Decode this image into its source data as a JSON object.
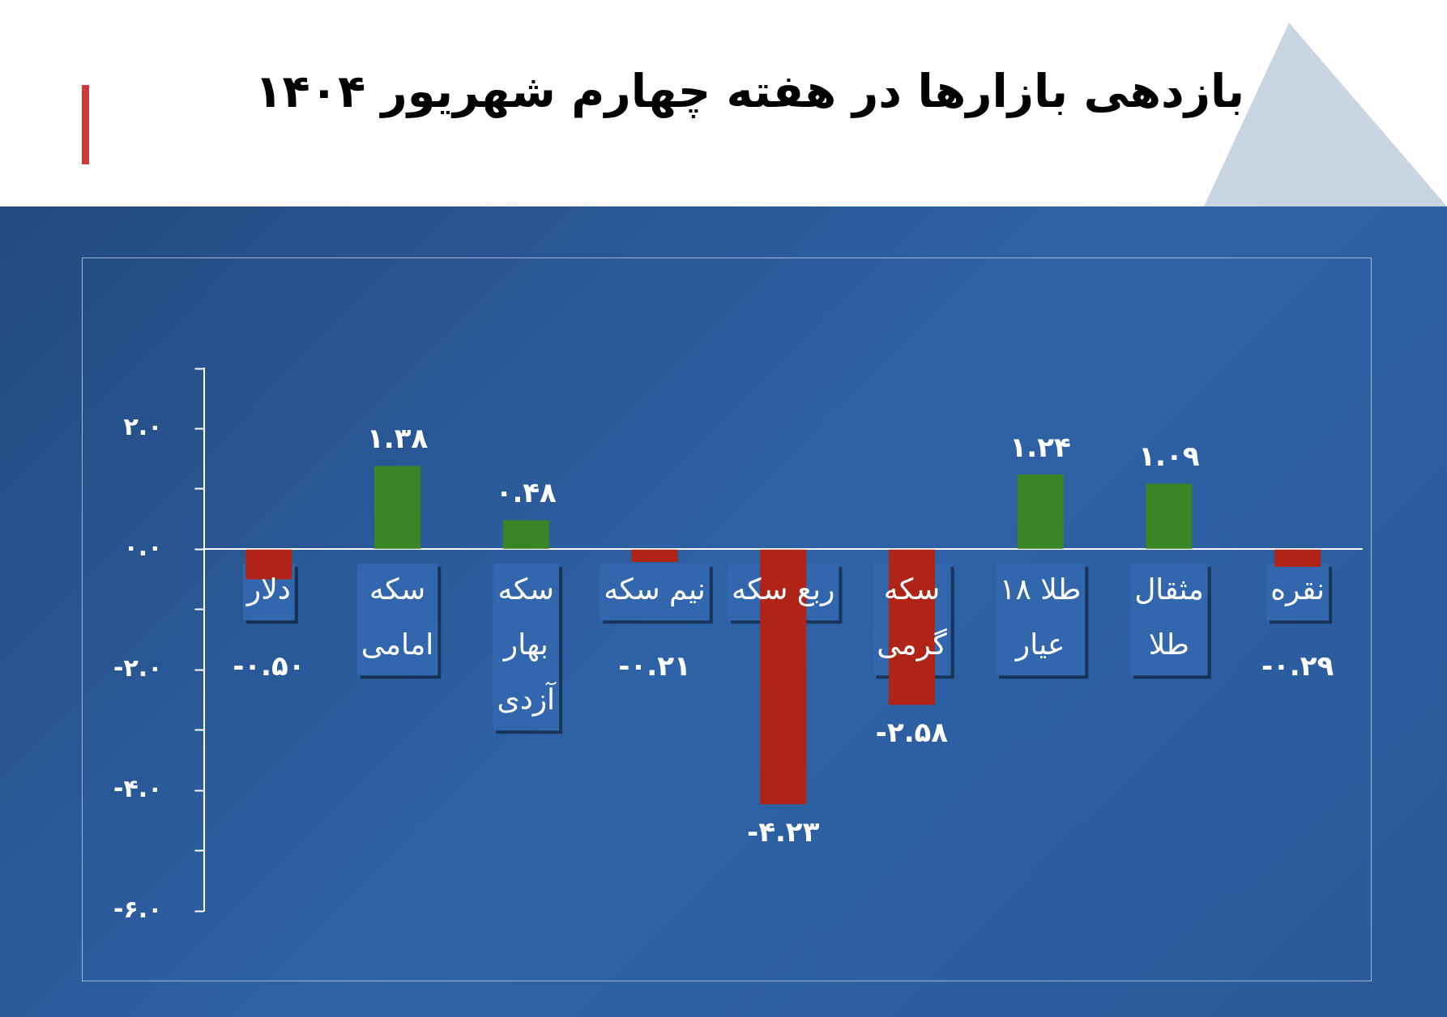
{
  "chart_data": {
    "type": "bar",
    "title": "بازدهی بازارها در هفته چهارم شهریور ۱۴۰۴",
    "categories": [
      "دلار",
      "سکه امامی",
      "سکه بهار آزدی",
      "نیم سکه",
      "ربع سکه",
      "سکه گرمی",
      "طلا ۱۸ عیار",
      "مثقال طلا",
      "نقره"
    ],
    "values": [
      -0.5,
      1.38,
      0.48,
      -0.21,
      -4.23,
      -2.58,
      1.24,
      1.09,
      -0.29
    ],
    "colors": [
      "#b02418",
      "#3a8526",
      "#3a8526",
      "#b02418",
      "#b02418",
      "#b02418",
      "#3a8526",
      "#3a8526",
      "#b02418"
    ],
    "value_labels": [
      "-۰.۵۰",
      "۱.۳۸",
      "۰.۴۸",
      "-۰.۲۱",
      "-۴.۲۳",
      "-۲.۵۸",
      "۱.۲۴",
      "۱.۰۹",
      "-۰.۲۹"
    ],
    "ylim": [
      -6,
      3
    ],
    "yticks": [
      {
        "value": 3,
        "label": null
      },
      {
        "value": 2,
        "label": "۲.۰"
      },
      {
        "value": 1,
        "label": null
      },
      {
        "value": 0,
        "label": "۰.۰"
      },
      {
        "value": -1,
        "label": null
      },
      {
        "value": -2,
        "label": "-۲.۰"
      },
      {
        "value": -3,
        "label": null
      },
      {
        "value": -4,
        "label": "-۴.۰"
      },
      {
        "value": -5,
        "label": null
      },
      {
        "value": -6,
        "label": "-۶.۰"
      }
    ],
    "grid": false,
    "legend": false
  }
}
